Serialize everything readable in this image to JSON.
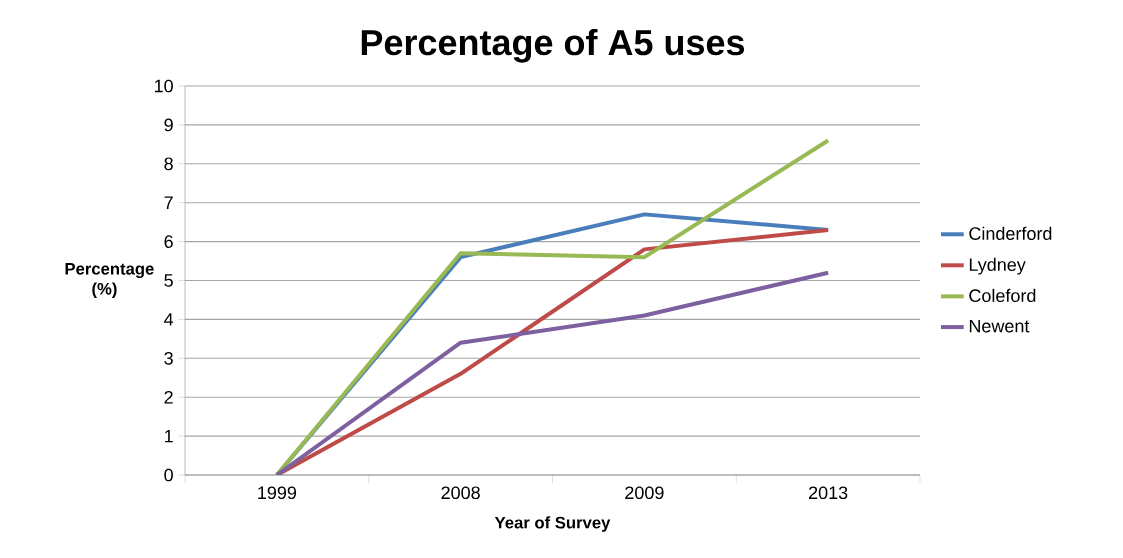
{
  "chart_data": {
    "type": "line",
    "title": "Percentage of A5 uses",
    "xlabel": "Year of Survey",
    "ylabel": "Percentage (%)",
    "categories": [
      "1999",
      "2008",
      "2009",
      "2013"
    ],
    "series": [
      {
        "name": "Cinderford",
        "color": "#4a7ebb",
        "values": [
          0,
          5.6,
          6.7,
          6.3
        ]
      },
      {
        "name": "Lydney",
        "color": "#be4b48",
        "values": [
          0,
          2.6,
          5.8,
          6.3
        ]
      },
      {
        "name": "Coleford",
        "color": "#98b954",
        "values": [
          0,
          5.7,
          5.6,
          8.6
        ]
      },
      {
        "name": "Newent",
        "color": "#7d60a0",
        "values": [
          0,
          3.4,
          4.1,
          5.2
        ]
      }
    ],
    "ylim": [
      0,
      10
    ],
    "yticks": [
      0,
      1,
      2,
      3,
      4,
      5,
      6,
      7,
      8,
      9,
      10
    ],
    "grid": "y",
    "legend": "right",
    "marker": "none",
    "line_style": "solid"
  }
}
